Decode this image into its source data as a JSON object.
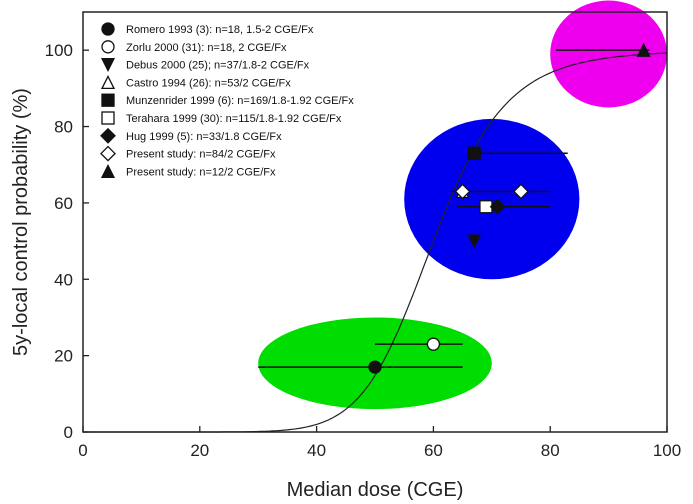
{
  "chart_data": {
    "type": "scatter",
    "xlabel": "Median dose (CGE)",
    "ylabel": "5y-local control probability (%)",
    "xlim": [
      0,
      100
    ],
    "ylim": [
      0,
      110
    ],
    "x_ticks": [
      0,
      20,
      40,
      60,
      80,
      100
    ],
    "y_ticks": [
      0,
      20,
      40,
      60,
      80,
      100
    ],
    "x_tick_labels": [
      "0",
      "20",
      "40",
      "60",
      "80",
      "100"
    ],
    "y_tick_labels": [
      "0",
      "20",
      "40",
      "60",
      "80",
      "100"
    ],
    "grid": false,
    "legend_position": "top-left",
    "series": [
      {
        "name": "Romero 1993 (3): n=18, 1.5-2 CGE/Fx",
        "marker": "filled-circle",
        "x": 50,
        "y": 17,
        "x_err": [
          30,
          65
        ]
      },
      {
        "name": "Zorlu 2000 (31): n=18, 2 CGE/Fx",
        "marker": "open-circle",
        "x": 60,
        "y": 23,
        "x_err": [
          50,
          65
        ]
      },
      {
        "name": "Debus 2000 (25); n=37/1.8-2 CGE/Fx",
        "marker": "filled-triangle-down",
        "x": 67,
        "y": 50,
        "x_err": null
      },
      {
        "name": "Castro 1994 (26): n=53/2 CGE/Fx",
        "marker": "open-triangle-up",
        "x": 65,
        "y": 63,
        "x_err": null
      },
      {
        "name": "Munzenrider 1999 (6): n=169/1.8-1.92 CGE/Fx",
        "marker": "filled-square",
        "x": 67,
        "y": 73,
        "x_err": [
          67,
          83
        ]
      },
      {
        "name": "Terahara 1999 (30): n=115/1.8-1.92 CGE/Fx",
        "marker": "open-square",
        "x": 69,
        "y": 59,
        "x_err": [
          64,
          73
        ]
      },
      {
        "name": "Hug 1999 (5): n=33/1.8 CGE/Fx",
        "marker": "filled-diamond",
        "x": 71,
        "y": 59,
        "x_err": [
          65,
          80
        ]
      },
      {
        "name": "Present study: n=84/2 CGE/Fx",
        "marker": "open-diamond",
        "x": [
          65,
          75
        ],
        "y": [
          63,
          63
        ],
        "x_err": [
          63,
          80
        ]
      },
      {
        "name": "Present study: n=12/2 CGE/Fx",
        "marker": "filled-triangle-up",
        "x": 96,
        "y": 100,
        "x_err": [
          81,
          97
        ]
      }
    ],
    "fit_curve": {
      "type": "logistic",
      "d50": 60,
      "gamma50": 2.4,
      "x_range": [
        0,
        100
      ]
    },
    "highlight_regions": [
      {
        "color": "#00dd00",
        "cx": 50,
        "cy": 18,
        "rx": 20,
        "ry": 12
      },
      {
        "color": "#0000ee",
        "cx": 70,
        "cy": 61,
        "rx": 15,
        "ry": 21
      },
      {
        "color": "#ee00ee",
        "cx": 90,
        "cy": 99,
        "rx": 10,
        "ry": 14
      }
    ],
    "colors": {
      "axis": "#222222",
      "markers": "#111111",
      "curve": "#222222"
    }
  }
}
